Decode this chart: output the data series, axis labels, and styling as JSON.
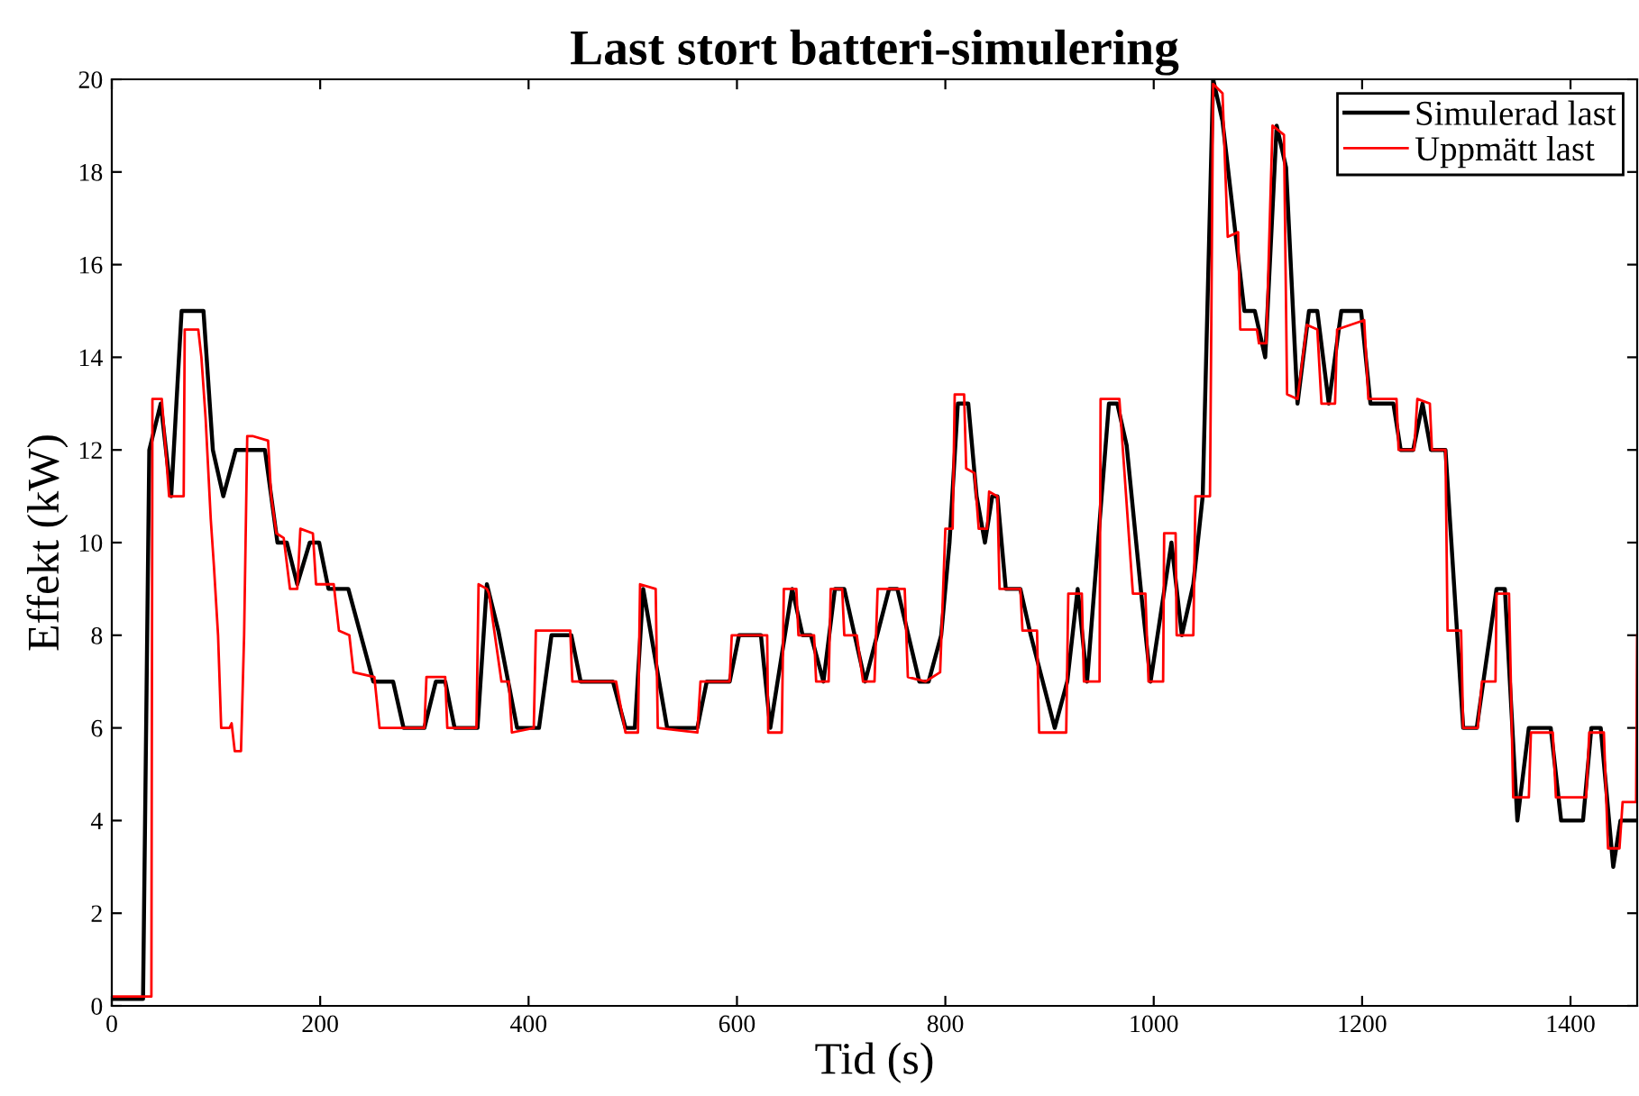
{
  "chart_data": {
    "type": "line",
    "title": "Last stort batteri-simulering",
    "xlabel": "Tid (s)",
    "ylabel": "Effekt (kW)",
    "xlim": [
      0,
      1464
    ],
    "ylim": [
      0,
      20
    ],
    "xticks": [
      0,
      200,
      400,
      600,
      800,
      1000,
      1200,
      1400
    ],
    "yticks": [
      0,
      2,
      4,
      6,
      8,
      10,
      12,
      14,
      16,
      18,
      20
    ],
    "grid": false,
    "legend": "top right",
    "line_style": "solid",
    "marker": "none",
    "series": [
      {
        "name": "Simulerad last",
        "color": "#000000",
        "x": [
          0,
          30,
          36,
          47,
          57,
          67,
          88,
          97,
          107,
          119,
          147,
          159,
          168,
          178,
          190,
          199,
          208,
          227,
          251,
          270,
          280,
          300,
          311,
          320,
          329,
          351,
          360,
          371,
          389,
          410,
          422,
          441,
          450,
          481,
          493,
          502,
          510,
          533,
          562,
          571,
          593,
          602,
          623,
          632,
          653,
          663,
          671,
          683,
          694,
          703,
          723,
          746,
          754,
          775,
          784,
          796,
          804,
          812,
          822,
          830,
          838,
          845,
          850,
          858,
          872,
          882,
          905,
          917,
          927,
          936,
          957,
          965,
          974,
          988,
          997,
          1017,
          1027,
          1038,
          1047,
          1057,
          1066,
          1087,
          1097,
          1107,
          1118,
          1127,
          1138,
          1149,
          1157,
          1168,
          1180,
          1199,
          1208,
          1230,
          1237,
          1249,
          1258,
          1266,
          1280,
          1297,
          1310,
          1329,
          1337,
          1349,
          1360,
          1381,
          1391,
          1412,
          1420,
          1429,
          1441,
          1448,
          1464
        ],
        "values": [
          0.15,
          0.15,
          12,
          13,
          11,
          15,
          15,
          12,
          11,
          12,
          12,
          10,
          10,
          9.1,
          10,
          10,
          9,
          9,
          7,
          7,
          6,
          6,
          7,
          7,
          6,
          6,
          9.1,
          8.1,
          6,
          6,
          8,
          8,
          7,
          7,
          6,
          6,
          9,
          6,
          6,
          7,
          7,
          8,
          8,
          6,
          9,
          8,
          8,
          7,
          9,
          9,
          7,
          9,
          9,
          7,
          7,
          8,
          10,
          13,
          13,
          11,
          10,
          11,
          11,
          9,
          9,
          8,
          6,
          7,
          9,
          7,
          13,
          13,
          12.1,
          8.9,
          7,
          10,
          8,
          9.1,
          11,
          20,
          19.1,
          15,
          15,
          14,
          19,
          18.1,
          13,
          15,
          15,
          13,
          15,
          15,
          13,
          13,
          12,
          12,
          13,
          12,
          12,
          6,
          6,
          9,
          9,
          4,
          6,
          6,
          4,
          4,
          6,
          6,
          3,
          4,
          4
        ]
      },
      {
        "name": "Uppmätt last",
        "color": "#ff0000",
        "x": [
          0,
          38,
          39,
          48,
          55,
          56,
          69,
          70,
          83,
          86,
          90,
          95,
          98,
          102,
          105,
          113,
          115,
          118,
          124,
          127,
          130,
          135,
          150,
          153,
          158,
          165,
          171,
          178,
          181,
          193,
          196,
          213,
          218,
          228,
          232,
          252,
          257,
          279,
          300,
          302,
          320,
          322,
          350,
          352,
          360,
          362,
          374,
          381,
          384,
          405,
          407,
          440,
          442,
          448,
          484,
          493,
          505,
          507,
          522,
          524,
          562,
          565,
          593,
          595,
          629,
          630,
          643,
          645,
          657,
          659,
          674,
          676,
          688,
          690,
          701,
          703,
          715,
          721,
          732,
          735,
          761,
          764,
          781,
          795,
          800,
          807,
          809,
          818,
          820,
          828,
          832,
          840,
          842,
          850,
          852,
          872,
          874,
          888,
          890,
          916,
          918,
          931,
          933,
          948,
          949,
          967,
          980,
          992,
          995,
          1009,
          1010,
          1021,
          1022,
          1038,
          1040,
          1054,
          1057,
          1066,
          1071,
          1081,
          1083,
          1099,
          1101,
          1108,
          1114,
          1125,
          1128,
          1138,
          1147,
          1157,
          1161,
          1174,
          1176,
          1202,
          1206,
          1233,
          1235,
          1250,
          1253,
          1265,
          1267,
          1280,
          1282,
          1295,
          1297,
          1311,
          1315,
          1328,
          1329,
          1341,
          1345,
          1360,
          1362,
          1383,
          1386,
          1415,
          1418,
          1432,
          1436,
          1447,
          1450,
          1463,
          1464
        ],
        "values": [
          0.2,
          0.2,
          13.1,
          13.1,
          11,
          11,
          11,
          14.6,
          14.6,
          14,
          12.7,
          10.5,
          9.5,
          8,
          6,
          6,
          6.1,
          5.5,
          5.5,
          8,
          12.3,
          12.3,
          12.2,
          11,
          10.2,
          10.1,
          9,
          9,
          10.3,
          10.2,
          9.1,
          9.1,
          8.1,
          8,
          7.2,
          7.1,
          6,
          6,
          6,
          7.1,
          7.1,
          6,
          6,
          9.1,
          9,
          8.9,
          7,
          7,
          5.9,
          6,
          8.1,
          8.1,
          7,
          7,
          7,
          5.9,
          5.9,
          9.1,
          9,
          6,
          5.9,
          7,
          7,
          8,
          8,
          5.9,
          5.9,
          9,
          9,
          8,
          8,
          7,
          7,
          9,
          9,
          8,
          8,
          7,
          7,
          9,
          9,
          7.1,
          7,
          7.2,
          10.3,
          10.3,
          13.2,
          13.2,
          11.6,
          11.5,
          10.3,
          10.3,
          11.1,
          11,
          9,
          9,
          8.1,
          8.1,
          5.9,
          5.9,
          8.9,
          8.9,
          7,
          7,
          13.1,
          13.1,
          8.9,
          8.9,
          7,
          7,
          10.2,
          10.2,
          8,
          8,
          11,
          11,
          19.9,
          19.7,
          16.6,
          16.7,
          14.6,
          14.6,
          14.3,
          14.3,
          19,
          18.8,
          13.2,
          13.1,
          14.7,
          14.6,
          13,
          13,
          14.6,
          14.8,
          13.1,
          13.1,
          12,
          12,
          13.1,
          13,
          12,
          12,
          8.1,
          8.1,
          6,
          6,
          7,
          7,
          8.9,
          8.9,
          4.5,
          4.5,
          5.9,
          5.9,
          4.5,
          4.5,
          5.9,
          5.9,
          3.4,
          3.4,
          4.4,
          4.4,
          8
        ]
      }
    ]
  }
}
